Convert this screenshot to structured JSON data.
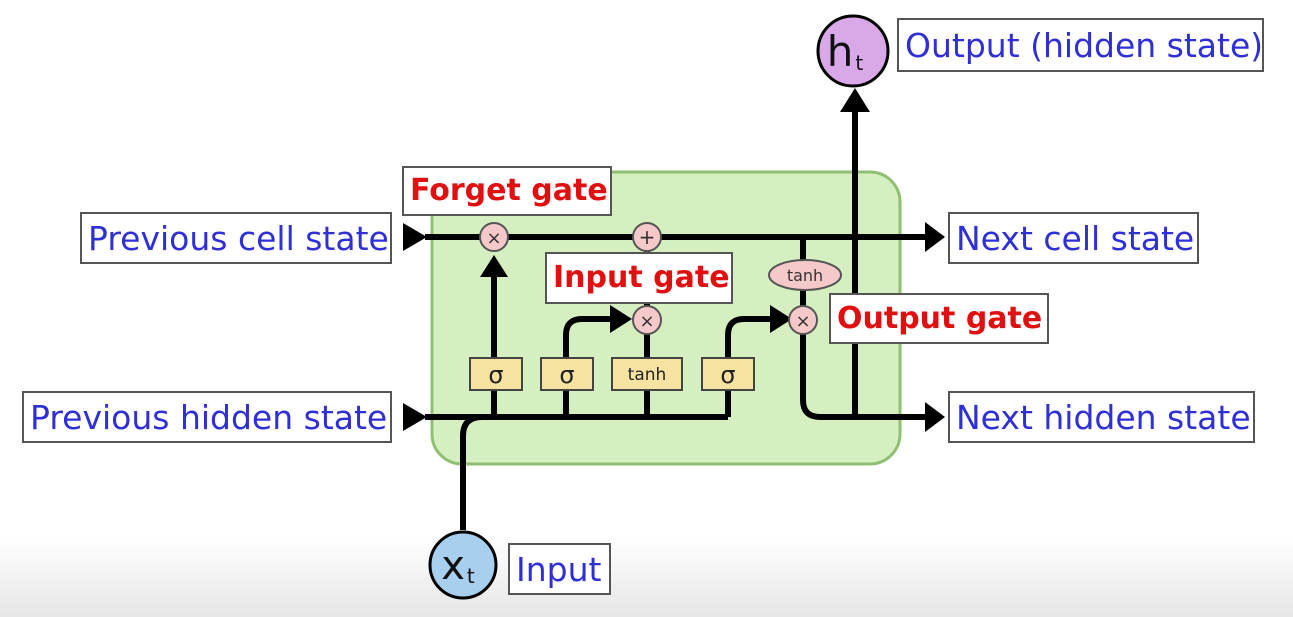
{
  "labels": {
    "prev_cell_state": "Previous cell state",
    "prev_hidden_state": "Previous hidden state",
    "next_cell_state": "Next cell state",
    "next_hidden_state": "Next hidden state",
    "output": "Output (hidden state)",
    "input": "Input"
  },
  "gates": {
    "forget": "Forget gate",
    "input": "Input gate",
    "output": "Output gate"
  },
  "nodes": {
    "h_main": "h",
    "h_sub": "t",
    "x_main": "x",
    "x_sub": "t"
  },
  "ops": {
    "multiply": "×",
    "add": "+",
    "sigma": "σ",
    "tanh": "tanh"
  },
  "colors": {
    "cell_fill": "#d6efc0",
    "cell_border": "#8fbf72",
    "label_text": "#2f2fd8",
    "gate_text": "#e01010",
    "layer_fill": "#f7e3a1",
    "op_fill": "#f5c9c9",
    "h_node_fill": "#d8a8e8",
    "x_node_fill": "#a8cfee"
  }
}
